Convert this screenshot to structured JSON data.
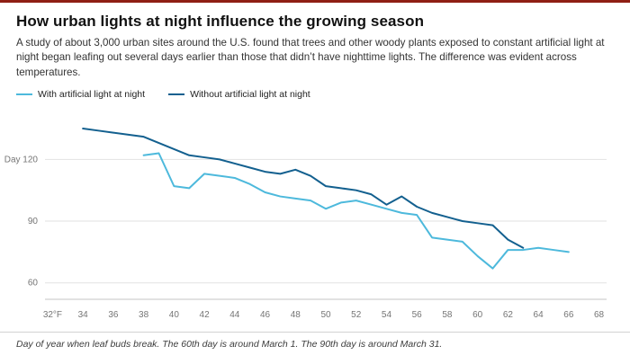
{
  "accent": {
    "top_bar_color": "#8f1f14"
  },
  "header": {
    "title": "How urban lights at night influence the growing season",
    "description": "A study of about 3,000 urban sites around the U.S. found that trees and other woody plants exposed to constant artificial light at night began leafing out several days earlier than those that didn’t have nighttime lights. The difference was evident across temperatures."
  },
  "legend": {
    "items": [
      {
        "label": "With artificial light at night",
        "color": "#4db9dc"
      },
      {
        "label": "Without artificial light at night",
        "color": "#13608f"
      }
    ]
  },
  "chart_data": {
    "type": "line",
    "title": "",
    "xlabel": "",
    "ylabel": "",
    "xlim": [
      31.5,
      68.5
    ],
    "ylim": [
      52,
      142
    ],
    "grid": "horizontal",
    "legend_position": "top-left",
    "x_ticks": [
      {
        "value": 32,
        "label": "32°F"
      },
      {
        "value": 34,
        "label": "34"
      },
      {
        "value": 36,
        "label": "36"
      },
      {
        "value": 38,
        "label": "38"
      },
      {
        "value": 40,
        "label": "40"
      },
      {
        "value": 42,
        "label": "42"
      },
      {
        "value": 44,
        "label": "44"
      },
      {
        "value": 46,
        "label": "46"
      },
      {
        "value": 48,
        "label": "48"
      },
      {
        "value": 50,
        "label": "50"
      },
      {
        "value": 52,
        "label": "52"
      },
      {
        "value": 54,
        "label": "54"
      },
      {
        "value": 56,
        "label": "56"
      },
      {
        "value": 58,
        "label": "58"
      },
      {
        "value": 60,
        "label": "60"
      },
      {
        "value": 62,
        "label": "62"
      },
      {
        "value": 64,
        "label": "64"
      },
      {
        "value": 66,
        "label": "66"
      },
      {
        "value": 68,
        "label": "68"
      }
    ],
    "y_ticks": [
      {
        "value": 60,
        "label": "60"
      },
      {
        "value": 90,
        "label": "90"
      },
      {
        "value": 120,
        "label": "Day 120"
      }
    ],
    "series": [
      {
        "name": "With artificial light at night",
        "color": "#4db9dc",
        "points": [
          [
            38,
            122
          ],
          [
            39,
            123
          ],
          [
            40,
            107
          ],
          [
            41,
            106
          ],
          [
            42,
            113
          ],
          [
            43,
            112
          ],
          [
            44,
            111
          ],
          [
            45,
            108
          ],
          [
            46,
            104
          ],
          [
            47,
            102
          ],
          [
            48,
            101
          ],
          [
            49,
            100
          ],
          [
            50,
            96
          ],
          [
            51,
            99
          ],
          [
            52,
            100
          ],
          [
            53,
            98
          ],
          [
            54,
            96
          ],
          [
            55,
            94
          ],
          [
            56,
            93
          ],
          [
            57,
            82
          ],
          [
            58,
            81
          ],
          [
            59,
            80
          ],
          [
            60,
            73
          ],
          [
            61,
            67
          ],
          [
            62,
            76
          ],
          [
            63,
            76
          ],
          [
            64,
            77
          ],
          [
            65,
            76
          ],
          [
            66,
            75
          ]
        ]
      },
      {
        "name": "Without artificial light at night",
        "color": "#13608f",
        "points": [
          [
            34,
            135
          ],
          [
            35,
            134
          ],
          [
            36,
            133
          ],
          [
            37,
            132
          ],
          [
            38,
            131
          ],
          [
            39,
            128
          ],
          [
            40,
            125
          ],
          [
            41,
            122
          ],
          [
            42,
            121
          ],
          [
            43,
            120
          ],
          [
            44,
            118
          ],
          [
            45,
            116
          ],
          [
            46,
            114
          ],
          [
            47,
            113
          ],
          [
            48,
            115
          ],
          [
            49,
            112
          ],
          [
            50,
            107
          ],
          [
            51,
            106
          ],
          [
            52,
            105
          ],
          [
            53,
            103
          ],
          [
            54,
            98
          ],
          [
            55,
            102
          ],
          [
            56,
            97
          ],
          [
            57,
            94
          ],
          [
            58,
            92
          ],
          [
            59,
            90
          ],
          [
            60,
            89
          ],
          [
            61,
            88
          ],
          [
            62,
            81
          ],
          [
            63,
            77
          ]
        ]
      }
    ]
  },
  "footer": {
    "caption": "Day of year when leaf buds break. The 60th day is around March 1. The 90th day is around March 31."
  }
}
